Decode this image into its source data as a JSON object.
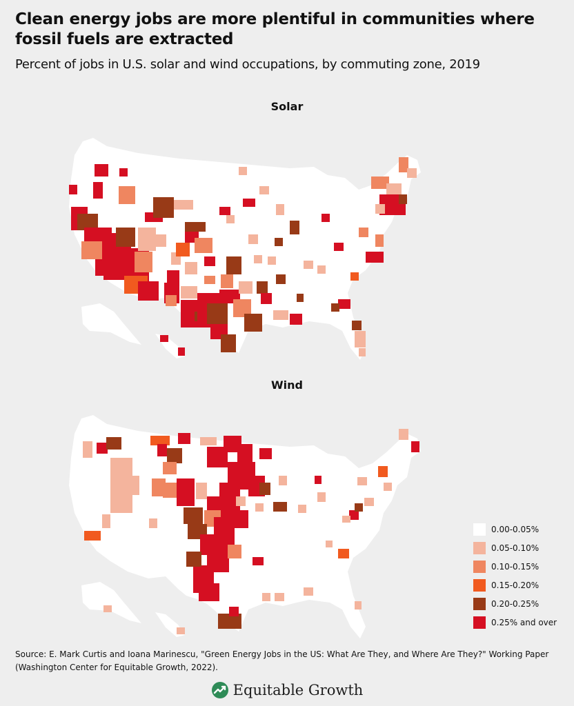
{
  "title": "Clean energy jobs are more plentiful in communities where fossil fuels are extracted",
  "subtitle": "Percent of jobs in U.S. solar and wind occupations, by commuting zone, 2019",
  "panels": {
    "solar": {
      "title": "Solar"
    },
    "wind": {
      "title": "Wind"
    }
  },
  "legend": [
    {
      "label": "0.00-0.05%",
      "color": "#ffffff"
    },
    {
      "label": "0.05-0.10%",
      "color": "#f4b49d"
    },
    {
      "label": "0.10-0.15%",
      "color": "#ef8660"
    },
    {
      "label": "0.15-0.20%",
      "color": "#f15a1f"
    },
    {
      "label": "0.20-0.25%",
      "color": "#983a17"
    },
    {
      "label": "0.25% and over",
      "color": "#d50f22"
    }
  ],
  "source": "Source: E. Mark Curtis and Ioana Marinescu, \"Green Energy Jobs in the US: What Are They, and Where Are They?\" Working Paper (Washington Center for Equitable Growth, 2022).",
  "brand": {
    "name": "Equitable Growth",
    "logo_icon": "equitable-growth-logo-icon"
  }
}
